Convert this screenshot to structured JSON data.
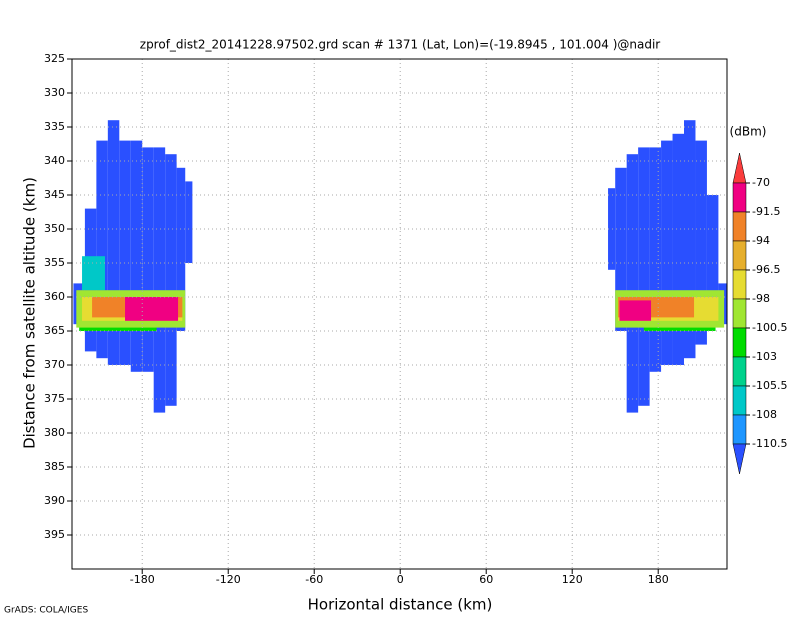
{
  "chart_data": {
    "type": "heatmap",
    "title": "zprof_dist2_20141228.97502.grd  scan # 1371  (Lat, Lon)=(-19.8945 , 101.004 )@nadir",
    "xlabel": "Horizontal distance (km)",
    "ylabel": "Distance from satellite altitude (km)",
    "footer": "GrADS: COLA/IGES",
    "xlim": [
      -229,
      228
    ],
    "ylim": [
      325,
      400
    ],
    "y_inverted": true,
    "xticks": [
      -180,
      -120,
      -60,
      0,
      60,
      120,
      180
    ],
    "yticks": [
      325,
      330,
      335,
      340,
      345,
      350,
      355,
      360,
      365,
      370,
      375,
      380,
      385,
      390,
      395
    ],
    "grid": true,
    "colorbar": {
      "unit": "(dBm)",
      "levels": [
        -70,
        -91.5,
        -94,
        -96.5,
        -98,
        -100.5,
        -103,
        -105.5,
        -108,
        -110.5
      ],
      "colors": [
        "#fa3c3c",
        "#f00082",
        "#f08228",
        "#e6af2d",
        "#e6dc32",
        "#a0e632",
        "#00dc00",
        "#00d28c",
        "#00c8c8",
        "#1e96ff",
        "#2a50ff"
      ]
    },
    "cells": [
      {
        "x": [
          -228,
          -220
        ],
        "y": [
          358,
          364
        ],
        "v": -112
      },
      {
        "x": [
          -220,
          -212
        ],
        "y": [
          347,
          368
        ],
        "v": -112
      },
      {
        "x": [
          -212,
          -204
        ],
        "y": [
          337,
          369
        ],
        "v": -112
      },
      {
        "x": [
          -204,
          -196
        ],
        "y": [
          334,
          370
        ],
        "v": -112
      },
      {
        "x": [
          -196,
          -188
        ],
        "y": [
          337,
          370
        ],
        "v": -112
      },
      {
        "x": [
          -188,
          -180
        ],
        "y": [
          337,
          371
        ],
        "v": -112
      },
      {
        "x": [
          -180,
          -172
        ],
        "y": [
          338,
          371
        ],
        "v": -112
      },
      {
        "x": [
          -172,
          -164
        ],
        "y": [
          338,
          377
        ],
        "v": -112
      },
      {
        "x": [
          -164,
          -156
        ],
        "y": [
          339,
          376
        ],
        "v": -112
      },
      {
        "x": [
          -156,
          -150
        ],
        "y": [
          341,
          365
        ],
        "v": -112
      },
      {
        "x": [
          -150,
          -145
        ],
        "y": [
          343,
          355
        ],
        "v": -112
      },
      {
        "x": [
          -222,
          -206
        ],
        "y": [
          354,
          359
        ],
        "v": -107
      },
      {
        "x": [
          -224,
          -170
        ],
        "y": [
          363.5,
          365
        ],
        "v": -102
      },
      {
        "x": [
          -226,
          -150
        ],
        "y": [
          359,
          364.5
        ],
        "v": -99
      },
      {
        "x": [
          -222,
          -152
        ],
        "y": [
          360,
          363.5
        ],
        "v": -97
      },
      {
        "x": [
          -215,
          -152
        ],
        "y": [
          360,
          363
        ],
        "v": -93
      },
      {
        "x": [
          -192,
          -155
        ],
        "y": [
          360,
          363.5
        ],
        "v": -85
      },
      {
        "x": [
          145,
          150
        ],
        "y": [
          344,
          356
        ],
        "v": -112
      },
      {
        "x": [
          150,
          158
        ],
        "y": [
          341,
          365
        ],
        "v": -112
      },
      {
        "x": [
          158,
          166
        ],
        "y": [
          339,
          377
        ],
        "v": -112
      },
      {
        "x": [
          166,
          174
        ],
        "y": [
          338,
          376
        ],
        "v": -112
      },
      {
        "x": [
          174,
          182
        ],
        "y": [
          338,
          371
        ],
        "v": -112
      },
      {
        "x": [
          182,
          190
        ],
        "y": [
          337,
          370
        ],
        "v": -112
      },
      {
        "x": [
          190,
          198
        ],
        "y": [
          336,
          370
        ],
        "v": -112
      },
      {
        "x": [
          198,
          206
        ],
        "y": [
          334,
          369
        ],
        "v": -112
      },
      {
        "x": [
          206,
          214
        ],
        "y": [
          337,
          367
        ],
        "v": -112
      },
      {
        "x": [
          214,
          222
        ],
        "y": [
          345,
          364
        ],
        "v": -112
      },
      {
        "x": [
          222,
          228
        ],
        "y": [
          358,
          364
        ],
        "v": -112
      },
      {
        "x": [
          170,
          220
        ],
        "y": [
          363.5,
          365
        ],
        "v": -102
      },
      {
        "x": [
          150,
          226
        ],
        "y": [
          359,
          364.5
        ],
        "v": -99
      },
      {
        "x": [
          152,
          222
        ],
        "y": [
          360,
          363.5
        ],
        "v": -97
      },
      {
        "x": [
          152,
          205
        ],
        "y": [
          360,
          363
        ],
        "v": -93
      },
      {
        "x": [
          153,
          175
        ],
        "y": [
          360.5,
          363.5
        ],
        "v": -85
      }
    ]
  }
}
